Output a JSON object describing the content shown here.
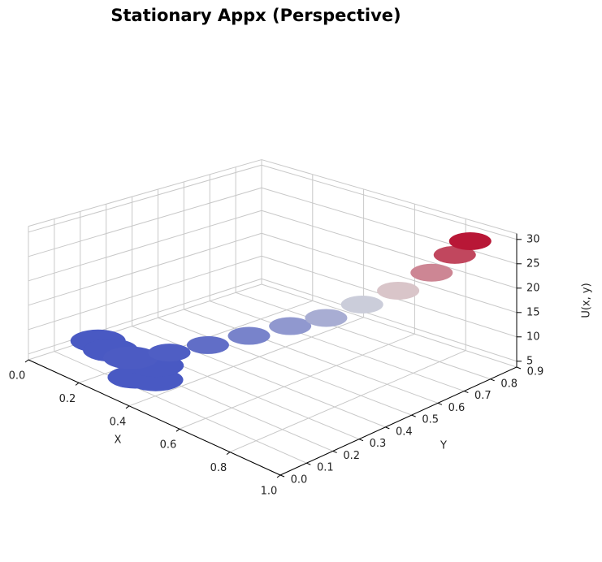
{
  "chart_data": {
    "type": "surface3d",
    "title": "Stationary Appx (Perspective)",
    "xlabel": "X",
    "ylabel": "Y",
    "zlabel": "U(x, y)",
    "xlim": [
      0,
      1
    ],
    "ylim": [
      0,
      0.9
    ],
    "zlim": [
      3.8,
      31.2
    ],
    "xticks": [
      {
        "value": 0,
        "label": "0.0"
      },
      0.2,
      0.4,
      0.6,
      0.8,
      {
        "value": 1,
        "label": "1.0"
      }
    ],
    "yticks": [
      {
        "value": 0,
        "label": "0.0"
      },
      0.1,
      0.2,
      0.3,
      0.4,
      0.5,
      0.6,
      0.7,
      0.8,
      0.9
    ],
    "zticks": [
      5,
      10,
      15,
      20,
      25,
      30
    ],
    "grid": true,
    "colormap": [
      "#3b4cc0",
      "#dddddd",
      "#b40426"
    ],
    "surface": {
      "x": [
        0.05,
        0.12,
        0.3,
        0.35,
        0.28,
        0.2,
        0.25,
        0.32,
        0.4,
        0.48,
        0.56,
        0.64,
        0.72,
        0.8,
        0.86,
        0.9
      ],
      "y": [
        0.22,
        0.2,
        0.12,
        0.15,
        0.22,
        0.2,
        0.3,
        0.38,
        0.46,
        0.54,
        0.6,
        0.66,
        0.72,
        0.77,
        0.8,
        0.82
      ],
      "z": [
        5,
        5,
        5,
        5,
        5,
        5.2,
        5.5,
        7,
        9,
        11,
        13,
        16,
        19,
        23,
        27,
        30
      ]
    }
  }
}
